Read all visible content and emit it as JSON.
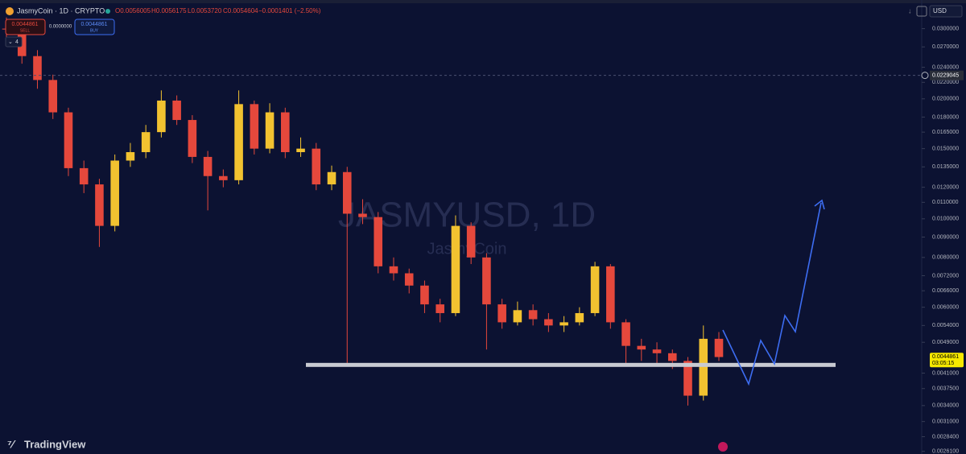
{
  "header": {
    "symbol": "JasmyCoin · 1D · CRYPTO",
    "open": "O0.0056005",
    "high": "H0.0056175",
    "low": "L0.0053720",
    "close": "C0.0054604",
    "change": "−0.0001401 (−2.50%)",
    "sell_price": "0.0044861",
    "sell_label": "SELL",
    "spread": "0.0000000",
    "buy_price": "0.0044861",
    "buy_label": "BUY",
    "indicator_count": "4",
    "currency": "USD",
    "logo": "TradingView"
  },
  "chart_data": {
    "type": "candlestick",
    "title": "JASMYUSD, 1D",
    "subtitle": "JasmyCoin",
    "open": [
      0.03,
      0.0299,
      0.0256,
      0.0223,
      0.0185,
      0.0134,
      0.0122,
      0.0096,
      0.014,
      0.0147,
      0.0165,
      0.0198,
      0.0177,
      0.0143,
      0.0128,
      0.0125,
      0.0194,
      0.015,
      0.0185,
      0.0147,
      0.015,
      0.0122,
      0.0131,
      0.0103,
      0.0101,
      0.0076,
      0.0073,
      0.0068,
      0.0061,
      0.0058,
      0.0096,
      0.008,
      0.0061,
      0.0055,
      0.0059,
      0.0056,
      0.0054,
      0.0055,
      0.0058,
      0.0076,
      0.0055,
      0.0048,
      0.0047,
      0.0046,
      0.0044,
      0.0036,
      0.005
    ],
    "high": [
      0.032,
      0.031,
      0.0265,
      0.023,
      0.019,
      0.014,
      0.0126,
      0.0145,
      0.0155,
      0.0172,
      0.021,
      0.0204,
      0.0182,
      0.0148,
      0.0133,
      0.021,
      0.0198,
      0.0195,
      0.019,
      0.016,
      0.0155,
      0.0136,
      0.0135,
      0.0112,
      0.0104,
      0.008,
      0.0075,
      0.007,
      0.0063,
      0.0102,
      0.0098,
      0.0082,
      0.0063,
      0.0062,
      0.0061,
      0.0058,
      0.0057,
      0.006,
      0.0078,
      0.0077,
      0.0056,
      0.005,
      0.0049,
      0.0047,
      0.0045,
      0.0054,
      0.0052
    ],
    "low": [
      0.028,
      0.0245,
      0.0212,
      0.0178,
      0.0128,
      0.0116,
      0.0085,
      0.0093,
      0.0135,
      0.0142,
      0.016,
      0.0172,
      0.0138,
      0.0105,
      0.012,
      0.0122,
      0.0145,
      0.0146,
      0.0142,
      0.0143,
      0.0118,
      0.0118,
      0.0043,
      0.0097,
      0.0073,
      0.007,
      0.0065,
      0.0058,
      0.0055,
      0.0057,
      0.0077,
      0.0047,
      0.0053,
      0.0054,
      0.0054,
      0.0052,
      0.0052,
      0.0054,
      0.0057,
      0.0053,
      0.0043,
      0.0044,
      0.0043,
      0.0042,
      0.0034,
      0.0035,
      0.0044
    ],
    "close": [
      0.0299,
      0.0256,
      0.0223,
      0.0185,
      0.0134,
      0.0122,
      0.0096,
      0.014,
      0.0147,
      0.0165,
      0.0198,
      0.0177,
      0.0143,
      0.0128,
      0.0125,
      0.0194,
      0.015,
      0.0185,
      0.0147,
      0.015,
      0.0122,
      0.0131,
      0.0103,
      0.0101,
      0.0076,
      0.0073,
      0.0068,
      0.0061,
      0.0058,
      0.0096,
      0.008,
      0.0061,
      0.0055,
      0.0059,
      0.0056,
      0.0054,
      0.0055,
      0.0058,
      0.0076,
      0.0055,
      0.0048,
      0.0047,
      0.0046,
      0.0044,
      0.0036,
      0.005,
      0.0045
    ],
    "up_color": "#f2c230",
    "down_color": "#e5483c",
    "log_scale": true,
    "ylim": [
      0.00257,
      0.0354
    ],
    "yticks": [
      {
        "value": 0.03,
        "label": "0.0300000"
      },
      {
        "value": 0.027,
        "label": "0.0270000"
      },
      {
        "value": 0.024,
        "label": "0.0240000"
      },
      {
        "value": 0.022,
        "label": "0.0220000"
      },
      {
        "value": 0.02,
        "label": "0.0200000"
      },
      {
        "value": 0.018,
        "label": "0.0180000"
      },
      {
        "value": 0.0165,
        "label": "0.0165000"
      },
      {
        "value": 0.015,
        "label": "0.0150000"
      },
      {
        "value": 0.0135,
        "label": "0.0135000"
      },
      {
        "value": 0.012,
        "label": "0.0120000"
      },
      {
        "value": 0.011,
        "label": "0.0110000"
      },
      {
        "value": 0.01,
        "label": "0.0100000"
      },
      {
        "value": 0.009,
        "label": "0.0090000"
      },
      {
        "value": 0.008,
        "label": "0.0080000"
      },
      {
        "value": 0.0072,
        "label": "0.0072000"
      },
      {
        "value": 0.0066,
        "label": "0.0066000"
      },
      {
        "value": 0.006,
        "label": "0.0060000"
      },
      {
        "value": 0.0054,
        "label": "0.0054000"
      },
      {
        "value": 0.0049,
        "label": "0.0049000"
      },
      {
        "value": 0.0041,
        "label": "0.0041000"
      },
      {
        "value": 0.00375,
        "label": "0.0037500"
      },
      {
        "value": 0.0034,
        "label": "0.0034000"
      },
      {
        "value": 0.0031,
        "label": "0.0031000"
      },
      {
        "value": 0.00284,
        "label": "0.0028400"
      },
      {
        "value": 0.00261,
        "label": "0.0026100"
      }
    ],
    "crosshair_price": 0.0229045,
    "last_price": 0.0044861,
    "countdown": "03:05:15",
    "support_level": 0.0043
  }
}
